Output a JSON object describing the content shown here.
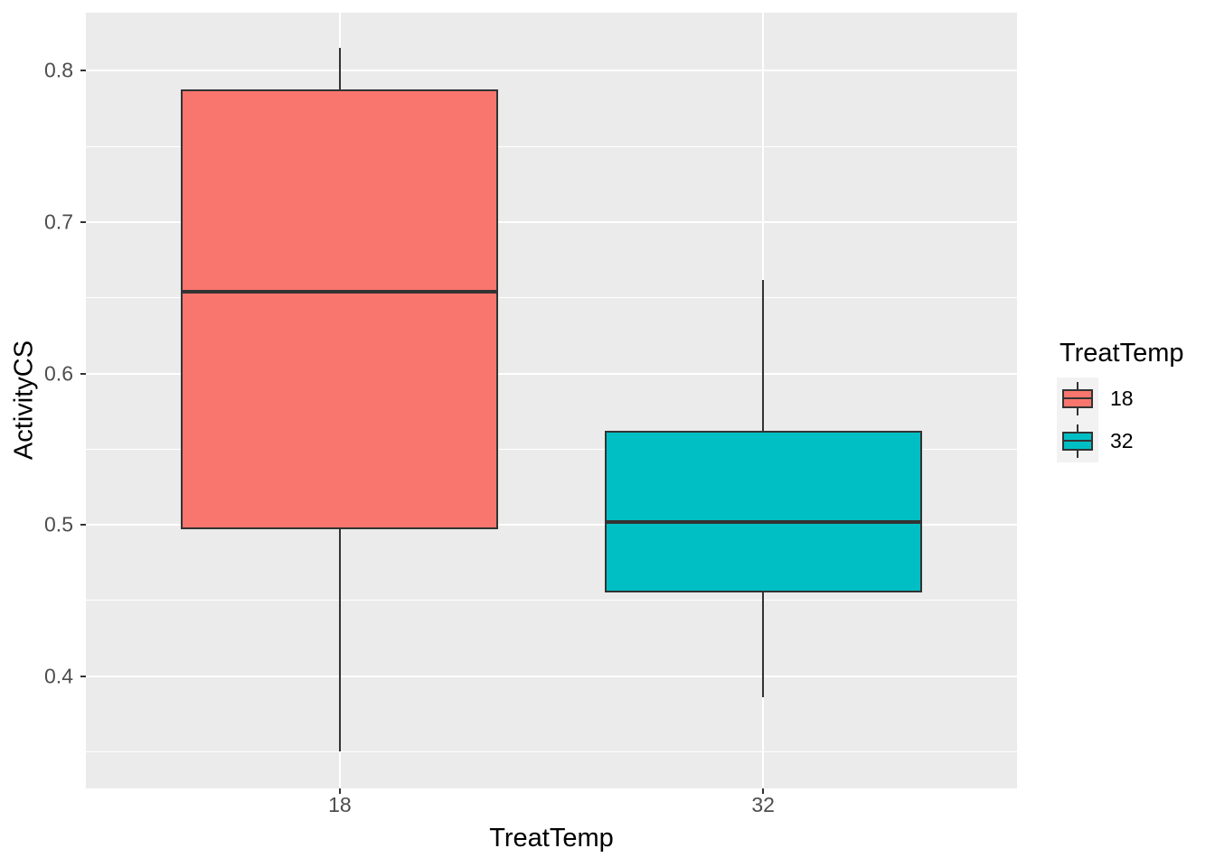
{
  "chart_data": {
    "type": "boxplot",
    "title": "",
    "xlabel": "TreatTemp",
    "ylabel": "ActivityCS",
    "categories": [
      "18",
      "32"
    ],
    "y_ticks": [
      0.8,
      0.7,
      0.6,
      0.5,
      0.4
    ],
    "y_tick_labels": [
      "0.8",
      "0.7",
      "0.6",
      "0.5",
      "0.4"
    ],
    "y_minor_ticks": [
      0.75,
      0.65,
      0.55,
      0.45,
      0.35
    ],
    "ylim": [
      0.3257,
      0.8385
    ],
    "grid": "on",
    "series": [
      {
        "name": "18",
        "fill": "#F8766D",
        "min": 0.35,
        "q1": 0.497,
        "median": 0.654,
        "q3": 0.788,
        "max": 0.815
      },
      {
        "name": "32",
        "fill": "#00BFC4",
        "min": 0.386,
        "q1": 0.455,
        "median": 0.502,
        "q3": 0.562,
        "max": 0.662
      }
    ],
    "legend": {
      "title": "TreatTemp",
      "position": "right",
      "entries": [
        {
          "label": "18",
          "color": "#F8766D"
        },
        {
          "label": "32",
          "color": "#00BFC4"
        }
      ]
    },
    "layout": {
      "x_positions": [
        0.2727,
        0.7273
      ],
      "box_width_frac": 0.3409
    },
    "colors": {
      "panel_bg": "#EBEBEB",
      "gridline": "#FFFFFF",
      "box_outline": "#333333",
      "tick_label": "#4D4D4D",
      "axis_title": "#000000",
      "legend_key_bg": "#F2F2F2"
    }
  }
}
